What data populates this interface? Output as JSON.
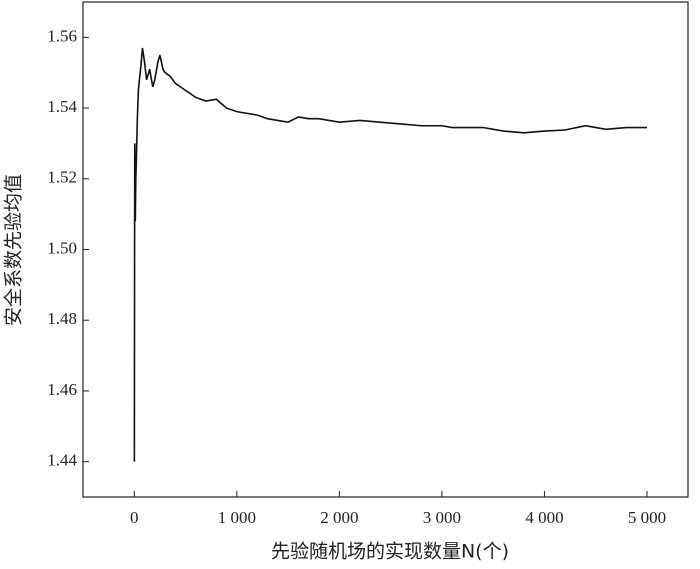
{
  "chart_data": {
    "type": "line",
    "x_label": "先验随机场的实现数量N(个)",
    "y_label": "安全系数先验均值",
    "x": [
      1,
      3,
      5,
      8,
      10,
      15,
      20,
      30,
      40,
      50,
      65,
      80,
      100,
      120,
      150,
      180,
      200,
      230,
      250,
      280,
      300,
      350,
      400,
      450,
      500,
      600,
      700,
      800,
      900,
      1000,
      1100,
      1200,
      1300,
      1400,
      1500,
      1600,
      1700,
      1800,
      1900,
      2000,
      2200,
      2400,
      2600,
      2800,
      3000,
      3100,
      3200,
      3400,
      3600,
      3800,
      4000,
      4200,
      4400,
      4600,
      4800,
      5000
    ],
    "series": [
      {
        "name": "安全系数先验均值",
        "color": "#111111",
        "values": [
          1.44,
          1.5,
          1.53,
          1.515,
          1.508,
          1.52,
          1.525,
          1.537,
          1.545,
          1.548,
          1.552,
          1.557,
          1.553,
          1.548,
          1.551,
          1.546,
          1.548,
          1.553,
          1.555,
          1.551,
          1.55,
          1.549,
          1.547,
          1.546,
          1.545,
          1.543,
          1.542,
          1.5425,
          1.54,
          1.539,
          1.5385,
          1.538,
          1.537,
          1.5365,
          1.536,
          1.5375,
          1.537,
          1.537,
          1.5365,
          1.536,
          1.5365,
          1.536,
          1.5355,
          1.535,
          1.535,
          1.5345,
          1.5345,
          1.5345,
          1.5335,
          1.533,
          1.5335,
          1.5338,
          1.535,
          1.534,
          1.5345,
          1.5345
        ]
      }
    ],
    "xlim": [
      -500,
      5400
    ],
    "ylim": [
      1.43,
      1.57
    ],
    "xticks": [
      0,
      {
        "value": 1000,
        "label": "1 000"
      },
      {
        "value": 2000,
        "label": "2 000"
      },
      {
        "value": 3000,
        "label": "3 000"
      },
      {
        "value": 4000,
        "label": "4 000"
      },
      {
        "value": 5000,
        "label": "5 000"
      }
    ],
    "yticks": [
      1.44,
      1.46,
      1.48,
      {
        "value": 1.5,
        "label": "1.50"
      },
      1.52,
      1.54,
      1.56
    ],
    "grid": false
  }
}
